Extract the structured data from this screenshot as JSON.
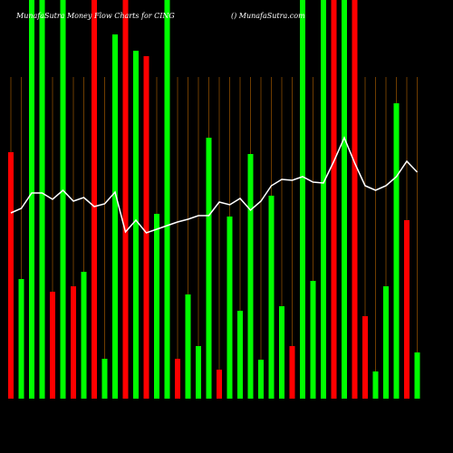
{
  "chart_data": {
    "type": "bar-line",
    "title": "MunafaSutra Money Flow Charts for CING",
    "subtitle": "() MunafaSutra.com",
    "categories": [
      null,
      null,
      null,
      null,
      null,
      null,
      null,
      null,
      null,
      null,
      null,
      null,
      null,
      null,
      null,
      null,
      null,
      null,
      null,
      null,
      null,
      null,
      null,
      null,
      null,
      null,
      null,
      null,
      null,
      null,
      null,
      null,
      null,
      null,
      null,
      null,
      null,
      null,
      null,
      null
    ],
    "series": [
      {
        "name": null,
        "values": [
          272,
          132,
          440,
          440,
          118,
          440,
          124,
          140,
          440,
          44,
          402,
          440,
          384,
          378,
          204,
          440,
          44,
          115,
          58,
          288,
          32,
          201,
          97,
          270,
          43,
          224,
          102,
          58,
          440,
          130,
          440,
          440,
          440,
          440,
          91,
          30,
          124,
          326,
          197,
          51
        ],
        "colors": [
          "#ff0000",
          "#00ff00",
          "#00ff00",
          "#00ff00",
          "#ff0000",
          "#00ff00",
          "#ff0000",
          "#00ff00",
          "#ff0000",
          "#00ff00",
          "#00ff00",
          "#ff0000",
          "#00ff00",
          "#ff0000",
          "#00ff00",
          "#00ff00",
          "#ff0000",
          "#00ff00",
          "#00ff00",
          "#00ff00",
          "#ff0000",
          "#00ff00",
          "#00ff00",
          "#00ff00",
          "#00ff00",
          "#00ff00",
          "#00ff00",
          "#ff0000",
          "#00ff00",
          "#00ff00",
          "#00ff00",
          "#ff0000",
          "#00ff00",
          "#ff0000",
          "#ff0000",
          "#00ff00",
          "#00ff00",
          "#00ff00",
          "#ff0000",
          "#00ff00"
        ]
      },
      {
        "name": null,
        "color": "#ffffff",
        "values": [
          205,
          210,
          227,
          227,
          220,
          230,
          218,
          222,
          212,
          215,
          228,
          184,
          197,
          183,
          187,
          191,
          195,
          198,
          202,
          202,
          217,
          214,
          221,
          208,
          218,
          235,
          242,
          241,
          245,
          239,
          238,
          262,
          288,
          260,
          235,
          230,
          235,
          245,
          262,
          250
        ]
      }
    ],
    "ylim": [
      0,
      440
    ]
  }
}
